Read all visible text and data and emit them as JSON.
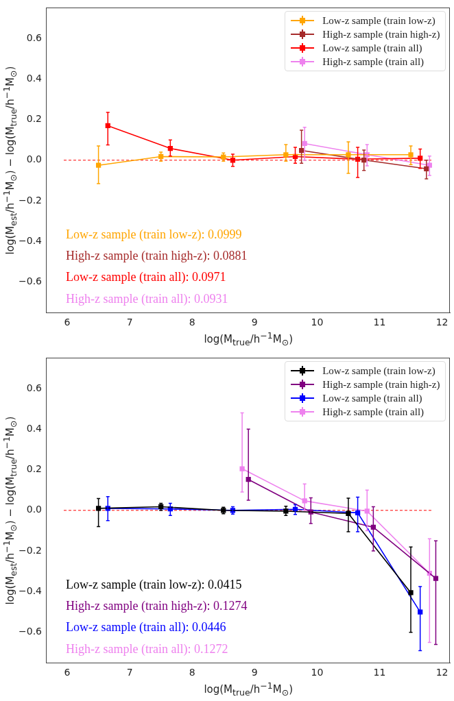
{
  "chart_data": [
    {
      "type": "line",
      "xlabel": "log(M$_{true}$/h$^{−1}$M$_{⊙}$)",
      "ylabel": "log(M$_{est}$/h$^{−1}$M$_{⊙}$) − log(M$_{true}$/h$^{−1}$M$_{⊙}$)",
      "xlim": [
        5.67,
        12.13
      ],
      "ylim": [
        -0.75,
        0.75
      ],
      "xticks": [
        6,
        7,
        8,
        9,
        10,
        11,
        12
      ],
      "yticks": [
        {
          "value": -0.6,
          "label": "−0.6"
        },
        {
          "value": -0.4,
          "label": "−0.4"
        },
        {
          "value": -0.2,
          "label": "−0.2"
        },
        {
          "value": 0,
          "label": "0.0"
        },
        0.2,
        0.4,
        0.6
      ],
      "grid": false,
      "legend": "top right",
      "marker": "square",
      "line_style": "solid",
      "ref_lines": [
        {
          "axis": "y",
          "value": 0,
          "color": "#ff0000",
          "line_style": "dashed"
        }
      ],
      "annotations": [
        "Low-z sample (train low-z): 0.0999",
        "High-z sample (train high-z): 0.0881",
        "Low-z sample (train all): 0.0971",
        "High-z sample (train all): 0.0931"
      ],
      "series": [
        {
          "name": "Low-z sample (train low-z)",
          "color": "#ffa500",
          "x": [
            6.5,
            7.5,
            8.5,
            9.5,
            10.5,
            11.5
          ],
          "values": [
            -0.025,
            0.018,
            0.016,
            0.027,
            0.027,
            0.027
          ],
          "errors": [
            [
              -0.115,
              0.07
            ],
            [
              -0.005,
              0.04
            ],
            [
              -0.005,
              0.036
            ],
            [
              -0.005,
              0.077
            ],
            [
              -0.065,
              0.09
            ],
            [
              -0.022,
              0.07
            ]
          ]
        },
        {
          "name": "High-z sample (train high-z)",
          "color": "#a52a2a",
          "x": [
            9.75,
            10.75,
            11.75
          ],
          "values": [
            0.048,
            0.001,
            -0.042
          ],
          "errors": [
            [
              -0.015,
              0.148
            ],
            [
              -0.05,
              0.05
            ],
            [
              -0.092,
              0.0
            ]
          ]
        },
        {
          "name": "Low-z sample (train all)",
          "color": "#ff0000",
          "x": [
            6.65,
            7.65,
            8.65,
            9.65,
            10.65,
            11.65
          ],
          "values": [
            0.17,
            0.058,
            0.0,
            0.018,
            0.005,
            0.01
          ],
          "errors": [
            [
              0.075,
              0.235
            ],
            [
              0.02,
              0.1
            ],
            [
              -0.03,
              0.03
            ],
            [
              -0.015,
              0.063
            ],
            [
              -0.085,
              0.063
            ],
            [
              -0.04,
              0.055
            ]
          ]
        },
        {
          "name": "High-z sample (train all)",
          "color": "#ee82ee",
          "x": [
            9.8,
            10.8,
            11.8
          ],
          "values": [
            0.082,
            0.027,
            -0.025
          ],
          "errors": [
            [
              0.0,
              0.162
            ],
            [
              -0.028,
              0.077
            ],
            [
              -0.075,
              0.02
            ]
          ]
        }
      ]
    },
    {
      "type": "line",
      "xlabel": "log(M$_{true}$/h$^{−1}$M$_{⊙}$)",
      "ylabel": "log(M$_{est}$/h$^{−1}$M$_{⊙}$) − log(M$_{true}$/h$^{−1}$M$_{⊙}$)",
      "xlim": [
        5.67,
        12.13
      ],
      "ylim": [
        -0.75,
        0.75
      ],
      "xticks": [
        6,
        7,
        8,
        9,
        10,
        11,
        12
      ],
      "yticks": [
        {
          "value": -0.6,
          "label": "−0.6"
        },
        {
          "value": -0.4,
          "label": "−0.4"
        },
        {
          "value": -0.2,
          "label": "−0.2"
        },
        {
          "value": 0,
          "label": "0.0"
        },
        0.2,
        0.4,
        0.6
      ],
      "grid": false,
      "legend": "top right",
      "marker": "square",
      "line_style": "solid",
      "ref_lines": [
        {
          "axis": "y",
          "value": 0,
          "color": "#ff0000",
          "line_style": "dashed"
        }
      ],
      "annotations": [
        "Low-z sample (train low-z): 0.0415",
        "High-z sample (train high-z): 0.1274",
        "Low-z sample (train all): 0.0446",
        "High-z sample (train all): 0.1272"
      ],
      "series": [
        {
          "name": "Low-z sample (train low-z)",
          "color": "#000000",
          "x": [
            6.5,
            7.5,
            8.5,
            9.5,
            10.5,
            11.5
          ],
          "values": [
            0.01,
            0.018,
            0.0,
            -0.004,
            -0.015,
            -0.405
          ],
          "errors": [
            [
              -0.08,
              0.058
            ],
            [
              0.0,
              0.035
            ],
            [
              -0.017,
              0.015
            ],
            [
              -0.025,
              0.02
            ],
            [
              -0.105,
              0.06
            ],
            [
              -0.6,
              -0.18
            ]
          ]
        },
        {
          "name": "High-z sample (train high-z)",
          "color": "#800080",
          "x": [
            8.9,
            9.9,
            10.9,
            11.9
          ],
          "values": [
            0.152,
            -0.008,
            -0.083,
            -0.335
          ],
          "errors": [
            [
              0.05,
              0.4
            ],
            [
              -0.065,
              0.062
            ],
            [
              -0.2,
              0.018
            ],
            [
              -0.66,
              -0.15
            ]
          ]
        },
        {
          "name": "Low-z sample (train all)",
          "color": "#0000ff",
          "x": [
            6.65,
            7.65,
            8.65,
            9.65,
            10.65,
            11.65
          ],
          "values": [
            0.01,
            0.007,
            0.0,
            0.005,
            -0.012,
            -0.5
          ],
          "errors": [
            [
              -0.05,
              0.068
            ],
            [
              -0.025,
              0.035
            ],
            [
              -0.018,
              0.018
            ],
            [
              -0.02,
              0.028
            ],
            [
              -0.105,
              0.065
            ],
            [
              -0.69,
              -0.375
            ]
          ]
        },
        {
          "name": "High-z sample (train all)",
          "color": "#ee82ee",
          "x": [
            8.8,
            9.8,
            10.8,
            11.8
          ],
          "values": [
            0.205,
            0.047,
            -0.004,
            -0.31
          ],
          "errors": [
            [
              0.09,
              0.48
            ],
            [
              0.0,
              0.13
            ],
            [
              -0.1,
              0.1
            ],
            [
              -0.65,
              -0.14
            ]
          ]
        }
      ]
    }
  ]
}
